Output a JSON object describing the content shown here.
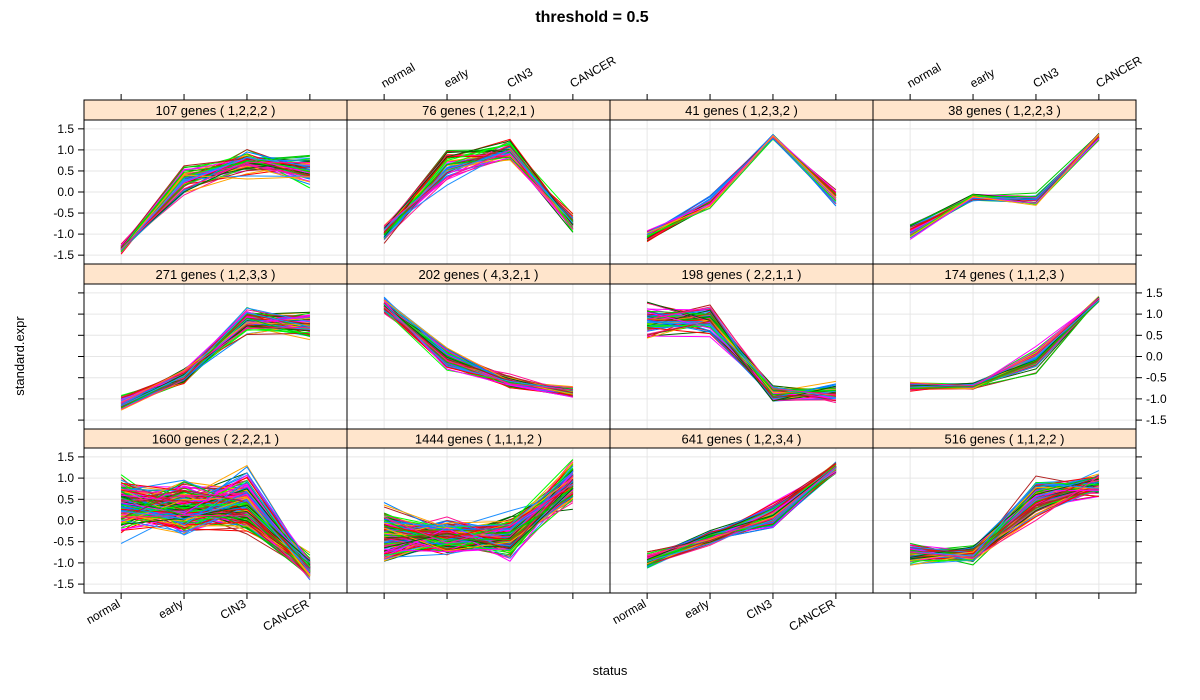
{
  "chart_data": {
    "type": "line",
    "subtype": "parallel-coordinates-trellis",
    "title": "threshold = 0.5",
    "xlabel": "status",
    "ylabel": "standard.expr",
    "x_categories": [
      "normal",
      "early",
      "CIN3",
      "CANCER"
    ],
    "y_ticks": [
      "1.5",
      "1.0",
      "0.5",
      "0.0",
      "-0.5",
      "-1.0",
      "-1.5"
    ],
    "y_tick_values": [
      1.5,
      1.0,
      0.5,
      0.0,
      -0.5,
      -1.0,
      -1.5
    ],
    "ylim": [
      -1.71,
      1.71
    ],
    "grid": true,
    "layout": {
      "columns": 4,
      "rows": 3
    },
    "strip_color": "#ffe5cc",
    "line_colors": [
      "#ff0000",
      "#00ff00",
      "#0080ff",
      "#ff00ff",
      "#ffa500",
      "#006400",
      "#b22222",
      "#00cc00",
      "#1e90ff",
      "#ff1493"
    ],
    "panels": [
      {
        "label": "107 genes ( 1,2,2,2 )",
        "genes": 107,
        "pattern": [
          1,
          2,
          2,
          2
        ],
        "mean": [
          -1.35,
          0.25,
          0.7,
          0.55
        ],
        "spread": [
          0.08,
          0.25,
          0.25,
          0.3
        ],
        "draw": 60
      },
      {
        "label": "76 genes ( 1,2,2,1 )",
        "genes": 76,
        "pattern": [
          1,
          2,
          2,
          1
        ],
        "mean": [
          -0.95,
          0.6,
          1.0,
          -0.75
        ],
        "spread": [
          0.18,
          0.3,
          0.2,
          0.15
        ],
        "draw": 50
      },
      {
        "label": "41 genes ( 1,2,3,2 )",
        "genes": 41,
        "pattern": [
          1,
          2,
          3,
          2
        ],
        "mean": [
          -1.05,
          -0.25,
          1.3,
          -0.15
        ],
        "spread": [
          0.12,
          0.12,
          0.05,
          0.15
        ],
        "draw": 35
      },
      {
        "label": "38 genes ( 1,2,2,3 )",
        "genes": 38,
        "pattern": [
          1,
          2,
          2,
          3
        ],
        "mean": [
          -0.95,
          -0.15,
          -0.2,
          1.3
        ],
        "spread": [
          0.15,
          0.1,
          0.12,
          0.08
        ],
        "draw": 35
      },
      {
        "label": "271 genes ( 1,2,3,3 )",
        "genes": 271,
        "pattern": [
          1,
          2,
          3,
          3
        ],
        "mean": [
          -1.1,
          -0.45,
          0.85,
          0.75
        ],
        "spread": [
          0.12,
          0.15,
          0.22,
          0.25
        ],
        "draw": 80
      },
      {
        "label": "202 genes ( 4,3,2,1 )",
        "genes": 202,
        "pattern": [
          4,
          3,
          2,
          1
        ],
        "mean": [
          1.2,
          -0.05,
          -0.6,
          -0.85
        ],
        "spread": [
          0.15,
          0.25,
          0.12,
          0.12
        ],
        "draw": 80
      },
      {
        "label": "198 genes ( 2,2,1,1 )",
        "genes": 198,
        "pattern": [
          2,
          2,
          1,
          1
        ],
        "mean": [
          0.85,
          0.85,
          -0.85,
          -0.85
        ],
        "spread": [
          0.35,
          0.25,
          0.15,
          0.15
        ],
        "draw": 80
      },
      {
        "label": "174 genes ( 1,1,2,3 )",
        "genes": 174,
        "pattern": [
          1,
          1,
          2,
          3
        ],
        "mean": [
          -0.7,
          -0.7,
          -0.1,
          1.35
        ],
        "spread": [
          0.08,
          0.06,
          0.2,
          0.05
        ],
        "draw": 80
      },
      {
        "label": "1600 genes ( 2,2,2,1 )",
        "genes": 1600,
        "pattern": [
          2,
          2,
          2,
          1
        ],
        "mean": [
          0.35,
          0.3,
          0.4,
          -1.1
        ],
        "spread": [
          0.55,
          0.5,
          0.55,
          0.2
        ],
        "draw": 200
      },
      {
        "label": "1444 genes ( 1,1,1,2 )",
        "genes": 1444,
        "pattern": [
          1,
          1,
          1,
          2
        ],
        "mean": [
          -0.35,
          -0.4,
          -0.4,
          0.9
        ],
        "spread": [
          0.45,
          0.3,
          0.35,
          0.35
        ],
        "draw": 200
      },
      {
        "label": "641 genes ( 1,2,3,4 )",
        "genes": 641,
        "pattern": [
          1,
          2,
          3,
          4
        ],
        "mean": [
          -0.95,
          -0.4,
          0.1,
          1.25
        ],
        "spread": [
          0.15,
          0.12,
          0.22,
          0.12
        ],
        "draw": 120
      },
      {
        "label": "516 genes ( 1,1,2,2 )",
        "genes": 516,
        "pattern": [
          1,
          1,
          2,
          2
        ],
        "mean": [
          -0.8,
          -0.8,
          0.55,
          0.85
        ],
        "spread": [
          0.18,
          0.15,
          0.35,
          0.2
        ],
        "draw": 120
      }
    ]
  }
}
